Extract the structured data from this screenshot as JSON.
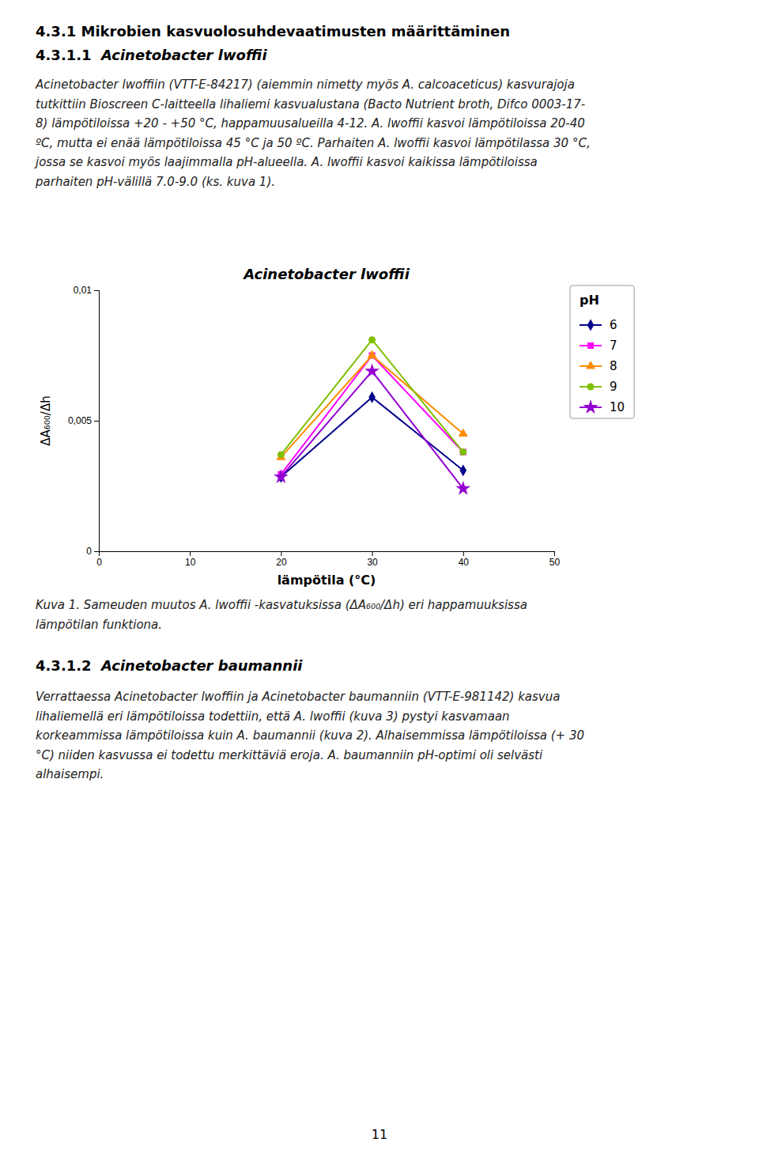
{
  "chart_data": {
    "type": "line",
    "title": "Acinetobacter lwoffii",
    "xlabel": "lämpötila (°C)",
    "ylabel": "ΔA₆₀₀/Δh",
    "x": [
      20,
      30,
      40
    ],
    "xlim": [
      0,
      50
    ],
    "xticks": [
      0,
      10,
      20,
      30,
      40,
      50
    ],
    "ylim": [
      0,
      0.01
    ],
    "yticks": [
      0,
      {
        "value": 0.005,
        "label": "0,005"
      },
      {
        "value": 0.01,
        "label": "0,01"
      }
    ],
    "grid": false,
    "legend": "right",
    "legend_title": "pH",
    "series": [
      {
        "name": "6",
        "color": "#00008B",
        "marker": "diamond",
        "line_style": "solid",
        "values": [
          0.00285,
          0.0059,
          0.0031
        ]
      },
      {
        "name": "7",
        "color": "#FF00FF",
        "marker": "square",
        "line_style": "solid",
        "values": [
          0.00295,
          0.0075,
          0.0038
        ]
      },
      {
        "name": "8",
        "color": "#FF8C00",
        "marker": "triangle",
        "line_style": "solid",
        "values": [
          0.0036,
          0.0075,
          0.0045
        ]
      },
      {
        "name": "9",
        "color": "#7FBF00",
        "marker": "circle",
        "line_style": "solid",
        "values": [
          0.0037,
          0.0081,
          0.0038
        ]
      },
      {
        "name": "10",
        "color": "#9400D3",
        "marker": "star",
        "line_style": "solid",
        "values": [
          0.00285,
          0.0069,
          0.0024
        ]
      }
    ]
  },
  "page": {
    "heading": "4.3.1 Mikrobien kasvuolosuhdevaatimusten määrittäminen",
    "sections": [
      {
        "number": "4.3.1.1 ",
        "species": "Acinetobacter lwoffii",
        "text": "Acinetobacter lwoffiin (VTT-E-84217) (aiemmin nimetty myös A. calcoaceticus) kasvurajoja\ntutkittiin Bioscreen C-laitteella lihaliemi kasvualustana (Bacto Nutrient broth, Difco 0003-17-\n8) lämpötiloissa +20 - +50 °C, happamuusalueilla 4-12. A. lwoffii kasvoi lämpötiloissa 20-40\nºC, mutta ei enää lämpötiloissa 45 °C ja 50 ºC. Parhaiten A. lwoffii kasvoi lämpötilassa 30 °C,\njossa se kasvoi myös laajimmalla pH-alueella. A. lwoffii kasvoi kaikissa lämpötiloissa\nparhaiten pH-välillä 7.0-9.0 (ks. kuva 1)."
      },
      {
        "number": "4.3.1.2 ",
        "species": "Acinetobacter baumannii",
        "text": "Verrattaessa Acinetobacter lwoffiin ja Acinetobacter baumanniin (VTT-E-981142) kasvua\nlihaliemellä eri lämpötiloissa todettiin, että A. lwoffii (kuva 3) pystyi kasvamaan\nkorkeammissa lämpötiloissa kuin A. baumannii (kuva 2). Alhaisemmissa lämpötiloissa (+ 30\n°C) niiden kasvussa ei todettu merkittäviä eroja. A. baumanniin pH-optimi oli selvästi\nalhaisempi."
      }
    ],
    "caption": "Kuva 1. Sameuden muutos A. lwoffii -kasvatuksissa (ΔA₆₀₀/Δh) eri happamuuksissa\nlämpötilan funktiona.",
    "page_number": "11"
  }
}
